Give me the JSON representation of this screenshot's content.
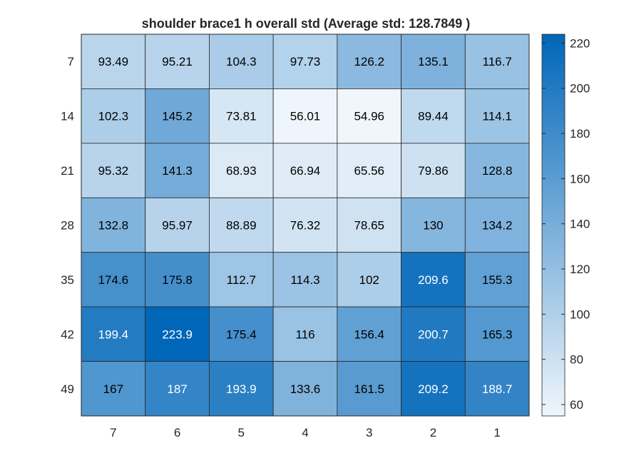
{
  "chart_data": {
    "type": "heatmap",
    "title": "shoulder brace1 h overall std (Average std: 128.7849 )",
    "x_categories": [
      "7",
      "6",
      "5",
      "4",
      "3",
      "2",
      "1"
    ],
    "y_categories": [
      "7",
      "14",
      "21",
      "28",
      "35",
      "42",
      "49"
    ],
    "values": [
      [
        93.49,
        95.21,
        104.3,
        97.73,
        126.2,
        135.1,
        116.7
      ],
      [
        102.3,
        145.2,
        73.81,
        56.01,
        54.96,
        89.44,
        114.1
      ],
      [
        95.32,
        141.3,
        68.93,
        66.94,
        65.56,
        79.86,
        128.8
      ],
      [
        132.8,
        95.97,
        88.89,
        76.32,
        78.65,
        130,
        134.2
      ],
      [
        174.6,
        175.8,
        112.7,
        114.3,
        102,
        209.6,
        155.3
      ],
      [
        199.4,
        223.9,
        175.4,
        116,
        156.4,
        200.7,
        165.3
      ],
      [
        167,
        187,
        193.9,
        133.6,
        161.5,
        209.2,
        188.7
      ]
    ],
    "color_range": [
      54.96,
      223.9
    ],
    "colorbar_ticks": [
      60,
      80,
      100,
      120,
      140,
      160,
      180,
      200,
      220
    ],
    "colormap": {
      "low": "#f0f6fc",
      "high": "#0066b8"
    },
    "xlabel": "",
    "ylabel": "",
    "grid": true,
    "legend": "colorbar-right"
  }
}
